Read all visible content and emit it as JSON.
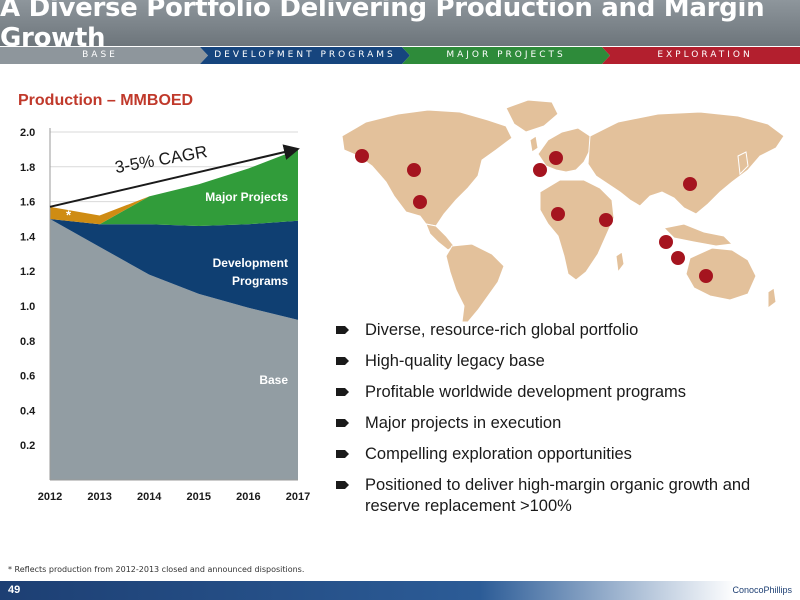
{
  "title": "A Diverse Portfolio Delivering Production and Margin Growth",
  "stages": [
    {
      "label": "BASE",
      "color": "#8e969c"
    },
    {
      "label": "DEVELOPMENT PROGRAMS",
      "color": "#16457e"
    },
    {
      "label": "MAJOR PROJECTS",
      "color": "#2e8b3a"
    },
    {
      "label": "EXPLORATION",
      "color": "#b31f2e"
    }
  ],
  "chart_title": "Production – MMBOED",
  "chart_data": {
    "type": "area",
    "stacked": true,
    "x": [
      2012,
      2013,
      2014,
      2015,
      2016,
      2017
    ],
    "ylim": [
      0,
      2.0
    ],
    "yticks": [
      "0.2",
      "0.4",
      "0.6",
      "0.8",
      "1.0",
      "1.2",
      "1.4",
      "1.6",
      "1.8",
      "2.0"
    ],
    "series": [
      {
        "name": "Base",
        "color": "#929da3",
        "values": [
          1.5,
          1.34,
          1.18,
          1.07,
          0.99,
          0.92
        ]
      },
      {
        "name": "Development Programs",
        "color": "#0f3f72",
        "values": [
          0.0,
          0.13,
          0.29,
          0.39,
          0.48,
          0.57
        ]
      },
      {
        "name": "Major Projects",
        "color": "#319c3a",
        "values": [
          0.0,
          0.0,
          0.16,
          0.24,
          0.32,
          0.41
        ]
      },
      {
        "name": "*",
        "color": "#cf8c13",
        "values": [
          0.07,
          0.05,
          0.0,
          0.0,
          0.0,
          0.0
        ]
      }
    ],
    "series_labels": {
      "major": "Major Projects",
      "dev_line1": "Development",
      "dev_line2": "Programs",
      "base": "Base",
      "star": "*"
    },
    "annotation": "3-5% CAGR"
  },
  "bullets": [
    "Diverse, resource-rich global portfolio",
    "High-quality legacy base",
    "Profitable worldwide development programs",
    "Major projects in execution",
    "Compelling exploration opportunities",
    "Positioned to deliver high-margin organic growth and reserve replacement >100%"
  ],
  "map": {
    "land_color": "#e3c19b",
    "dot_color": "#a5141f"
  },
  "footnote": "* Reflects production from 2012-2013 closed and announced dispositions.",
  "page_number": "49",
  "logo": "ConocoPhillips"
}
